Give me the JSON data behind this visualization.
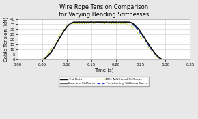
{
  "title": "Wire Rope Tension Comparison\nfor Varying Bending Stiffnesses",
  "xlabel": "Time (s)",
  "ylabel": "Cable Tension (kN)",
  "xlim": [
    0.0,
    0.35
  ],
  "ylim": [
    0,
    40
  ],
  "xticks": [
    0.0,
    0.05,
    0.1,
    0.15,
    0.2,
    0.25,
    0.3,
    0.35
  ],
  "yticks": [
    0,
    5,
    10,
    15,
    20,
    25,
    30,
    35,
    40
  ],
  "colors": {
    "test_data": "#111111",
    "baseline": "#666666",
    "additional": "#bbcc00",
    "transitioning": "#2244cc"
  },
  "legend": [
    "Test Data",
    "Baseline Stiffness",
    "10% Additional Stiffness",
    "Transitioning Stiffness Curve"
  ],
  "bg_color": "#e8e8e8",
  "plot_bg": "#ffffff"
}
